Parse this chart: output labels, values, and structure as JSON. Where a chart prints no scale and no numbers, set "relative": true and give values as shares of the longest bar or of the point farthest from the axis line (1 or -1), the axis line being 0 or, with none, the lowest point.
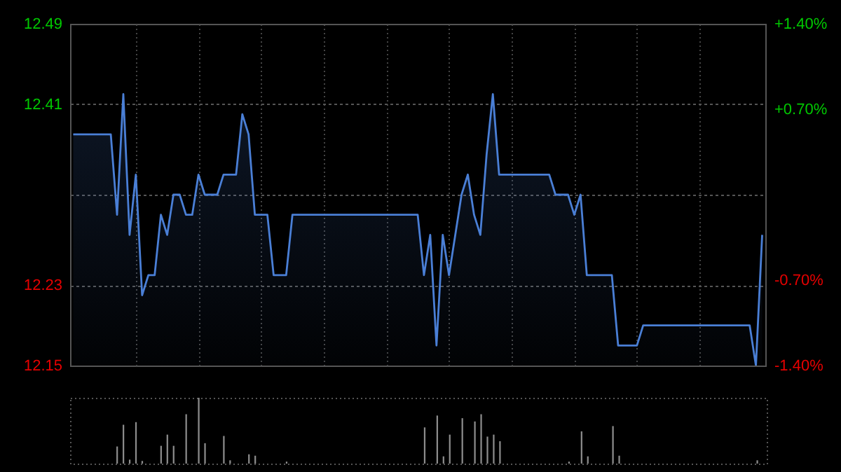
{
  "chart_data": [
    {
      "type": "area",
      "categories": [
        null,
        null,
        null,
        null,
        null,
        null,
        null,
        null,
        null,
        null,
        null,
        null,
        null,
        null,
        null,
        null,
        null,
        null,
        null,
        null,
        null,
        null,
        null,
        null,
        null,
        null,
        null,
        null,
        null,
        null,
        null,
        null,
        null,
        null,
        null,
        null,
        null,
        null,
        null,
        null,
        null,
        null,
        null,
        null,
        null,
        null,
        null,
        null,
        null,
        null,
        null,
        null,
        null,
        null,
        null,
        null,
        null,
        null,
        null,
        null,
        null,
        null,
        null,
        null,
        null,
        null,
        null,
        null,
        null,
        null,
        null,
        null,
        null,
        null,
        null,
        null,
        null,
        null,
        null,
        null,
        null,
        null,
        null,
        null,
        null,
        null,
        null,
        null,
        null,
        null,
        null,
        null,
        null,
        null,
        null,
        null,
        null,
        null,
        null,
        null,
        null,
        null,
        null,
        null,
        null,
        null,
        null,
        null,
        null,
        null,
        null
      ],
      "series": [
        {
          "color": "#4a7fd6",
          "values": [
            12.38,
            12.38,
            12.38,
            12.38,
            12.38,
            12.38,
            12.38,
            12.3,
            12.42,
            12.28,
            12.34,
            12.22,
            12.24,
            12.24,
            12.3,
            12.28,
            12.32,
            12.32,
            12.3,
            12.3,
            12.34,
            12.32,
            12.32,
            12.32,
            12.34,
            12.34,
            12.34,
            12.4,
            12.38,
            12.3,
            12.3,
            12.3,
            12.24,
            12.24,
            12.24,
            12.3,
            12.3,
            12.3,
            12.3,
            12.3,
            12.3,
            12.3,
            12.3,
            12.3,
            12.3,
            12.3,
            12.3,
            12.3,
            12.3,
            12.3,
            12.3,
            12.3,
            12.3,
            12.3,
            12.3,
            12.3,
            12.24,
            12.28,
            12.17,
            12.28,
            12.24,
            12.28,
            12.32,
            12.34,
            12.3,
            12.28,
            12.36,
            12.42,
            12.34,
            12.34,
            12.34,
            12.34,
            12.34,
            12.34,
            12.34,
            12.34,
            12.34,
            12.32,
            12.32,
            12.32,
            12.3,
            12.32,
            12.24,
            12.24,
            12.24,
            12.24,
            12.24,
            12.17,
            12.17,
            12.17,
            12.17,
            12.19,
            12.19,
            12.19,
            12.19,
            12.19,
            12.19,
            12.19,
            12.19,
            12.19,
            12.19,
            12.19,
            12.19,
            12.19,
            12.19,
            12.19,
            12.19,
            12.19,
            12.19,
            12.15,
            12.28
          ]
        }
      ],
      "ylim": [
        12.15,
        12.49
      ],
      "yticks": [
        12.15,
        12.23,
        {
          "value": 12.32,
          "label": null
        },
        12.41,
        12.49
      ],
      "y2lim": [
        -1.4,
        1.4
      ],
      "y2ticks": [
        {
          "value": -1.4,
          "label": "-1.40%"
        },
        {
          "value": -0.7,
          "label": "-0.70%"
        },
        {
          "value": 0.7,
          "label": "+0.70%"
        },
        {
          "value": 1.4,
          "label": "+1.40%"
        }
      ],
      "grid": true,
      "tick_labels": "y"
    },
    {
      "type": "bar",
      "relative": true,
      "categories": [
        null,
        null,
        null,
        null,
        null,
        null,
        null,
        null,
        null,
        null,
        null,
        null,
        null,
        null,
        null,
        null,
        null,
        null,
        null,
        null,
        null,
        null,
        null,
        null,
        null,
        null,
        null,
        null,
        null,
        null,
        null,
        null,
        null,
        null,
        null,
        null,
        null,
        null,
        null,
        null,
        null,
        null,
        null,
        null,
        null,
        null,
        null,
        null,
        null,
        null,
        null,
        null,
        null,
        null,
        null,
        null,
        null,
        null,
        null,
        null,
        null,
        null,
        null,
        null,
        null,
        null,
        null,
        null,
        null,
        null,
        null,
        null,
        null,
        null,
        null,
        null,
        null,
        null,
        null,
        null,
        null,
        null,
        null,
        null,
        null,
        null,
        null,
        null,
        null,
        null,
        null,
        null,
        null,
        null,
        null,
        null,
        null,
        null,
        null,
        null,
        null,
        null,
        null,
        null,
        null,
        null,
        null,
        null,
        null,
        null,
        null
      ],
      "series": [
        {
          "color": "#8c8c8c",
          "values": [
            0,
            0,
            0,
            0,
            0,
            0,
            0,
            0.26,
            0.59,
            0.06,
            0.63,
            0.04,
            0,
            0,
            0.27,
            0.44,
            0.27,
            0,
            0.75,
            0,
            1,
            0.31,
            0,
            0,
            0.42,
            0.05,
            0,
            0,
            0.14,
            0.12,
            0,
            0,
            0,
            0,
            0.03,
            0,
            0,
            0,
            0,
            0,
            0,
            0,
            0,
            0,
            0,
            0,
            0,
            0,
            0,
            0,
            0,
            0,
            0,
            0,
            0,
            0,
            0.55,
            0,
            0.73,
            0.11,
            0.44,
            0,
            0.69,
            0,
            0.64,
            0.75,
            0.41,
            0.44,
            0.34,
            0,
            0,
            0,
            0,
            0,
            0,
            0,
            0,
            0,
            0,
            0.03,
            0,
            0.49,
            0.11,
            0,
            0,
            0,
            0.57,
            0.12,
            0,
            0,
            0,
            0,
            0,
            0,
            0,
            0,
            0,
            0,
            0,
            0,
            0,
            0,
            0,
            0,
            0,
            0,
            0,
            0,
            0,
            0.05,
            0
          ]
        }
      ],
      "tick_labels": false
    }
  ]
}
